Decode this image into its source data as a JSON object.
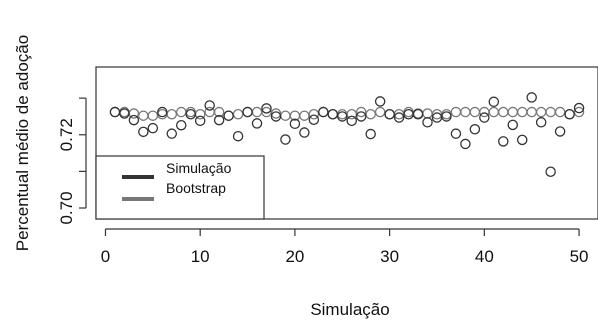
{
  "chart_data": {
    "type": "scatter",
    "xlabel": "Simulação",
    "ylabel": "Percentual médio de adoção",
    "xlim": [
      -1,
      52
    ],
    "ylim": [
      0.697,
      0.7385
    ],
    "x_ticks": [
      0,
      10,
      20,
      30,
      40,
      50
    ],
    "x_tick_labels": [
      "0",
      "10",
      "20",
      "30",
      "40",
      "50"
    ],
    "y_ticks": [
      0.7,
      0.72
    ],
    "y_tick_labels": [
      "0.70",
      "0.72"
    ],
    "y_minor_ticks": [
      0.71,
      0.73
    ],
    "grid": false,
    "legend": {
      "position": "bottom-left",
      "entries": [
        {
          "label": "Simulação",
          "color": "#333333"
        },
        {
          "label": "Bootstrap",
          "color": "#777777"
        }
      ]
    },
    "series": [
      {
        "name": "Simulação",
        "color": "#333333",
        "x": [
          1,
          2,
          3,
          4,
          5,
          6,
          7,
          8,
          9,
          10,
          11,
          12,
          13,
          14,
          15,
          16,
          17,
          18,
          19,
          20,
          21,
          22,
          23,
          24,
          25,
          26,
          27,
          28,
          29,
          30,
          31,
          32,
          33,
          34,
          35,
          36,
          37,
          38,
          39,
          40,
          41,
          42,
          43,
          44,
          45,
          46,
          47,
          48,
          49,
          50
        ],
        "values": [
          0.7262,
          0.7258,
          0.724,
          0.7208,
          0.7218,
          0.7262,
          0.7203,
          0.7226,
          0.7256,
          0.7238,
          0.728,
          0.724,
          0.7252,
          0.7196,
          0.7262,
          0.7231,
          0.7272,
          0.725,
          0.7187,
          0.723,
          0.7206,
          0.7241,
          0.7262,
          0.7256,
          0.725,
          0.7238,
          0.725,
          0.7202,
          0.7291,
          0.7256,
          0.7247,
          0.7256,
          0.7256,
          0.7234,
          0.7247,
          0.725,
          0.7203,
          0.7175,
          0.7215,
          0.7247,
          0.729,
          0.7182,
          0.7227,
          0.7186,
          0.7302,
          0.7234,
          0.7099,
          0.7209,
          0.7256,
          0.7273
        ]
      },
      {
        "name": "Bootstrap",
        "color": "#777777",
        "x": [
          1,
          2,
          3,
          4,
          5,
          6,
          7,
          8,
          9,
          10,
          11,
          12,
          13,
          14,
          15,
          16,
          17,
          18,
          19,
          20,
          21,
          22,
          23,
          24,
          25,
          26,
          27,
          28,
          29,
          30,
          31,
          32,
          33,
          34,
          35,
          36,
          37,
          38,
          39,
          40,
          41,
          42,
          43,
          44,
          45,
          46,
          47,
          48,
          49,
          50
        ],
        "values": [
          0.7262,
          0.7262,
          0.7258,
          0.7252,
          0.7252,
          0.7256,
          0.7256,
          0.7262,
          0.7262,
          0.7256,
          0.7262,
          0.7262,
          0.7252,
          0.7256,
          0.7262,
          0.7262,
          0.7262,
          0.7258,
          0.7252,
          0.7252,
          0.7252,
          0.7256,
          0.7262,
          0.7256,
          0.7256,
          0.7256,
          0.7262,
          0.7256,
          0.7262,
          0.7256,
          0.7256,
          0.7262,
          0.7258,
          0.7258,
          0.7256,
          0.7256,
          0.7262,
          0.7262,
          0.7262,
          0.7262,
          0.7262,
          0.7262,
          0.7262,
          0.7262,
          0.7262,
          0.7262,
          0.7262,
          0.7262,
          0.7256,
          0.7262
        ]
      }
    ]
  }
}
